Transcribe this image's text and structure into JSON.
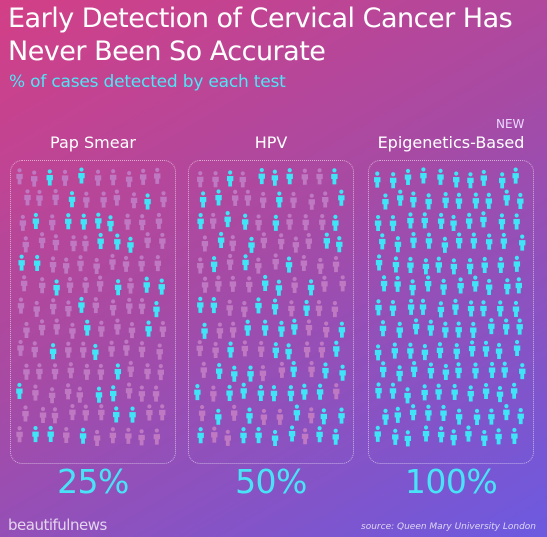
{
  "header": {
    "title": "Early Detection of Cervical Cancer Has\nNever Been So Accurate",
    "subtitle": "% of cases detected by each test"
  },
  "footer": {
    "brand": "beautifulnews",
    "source": "source: Queen Mary University London"
  },
  "colors": {
    "detected": "#3fe4f7",
    "undetected": "#bf78c2",
    "accent": "#49e3f7"
  },
  "chart_data": {
    "type": "bar",
    "title": "Early Detection of Cervical Cancer Has Never Been So Accurate",
    "subtitle": "% of cases detected by each test",
    "categories": [
      "Pap Smear",
      "HPV",
      "Epigenetics-Based"
    ],
    "values": [
      25,
      50,
      100
    ],
    "value_labels": [
      "25%",
      "50%",
      "100%"
    ],
    "annotations": [
      "NEW"
    ],
    "icon_encoding": "pictogram grid of people; detected cases highlighted in cyan",
    "ylim": [
      0,
      100
    ]
  }
}
